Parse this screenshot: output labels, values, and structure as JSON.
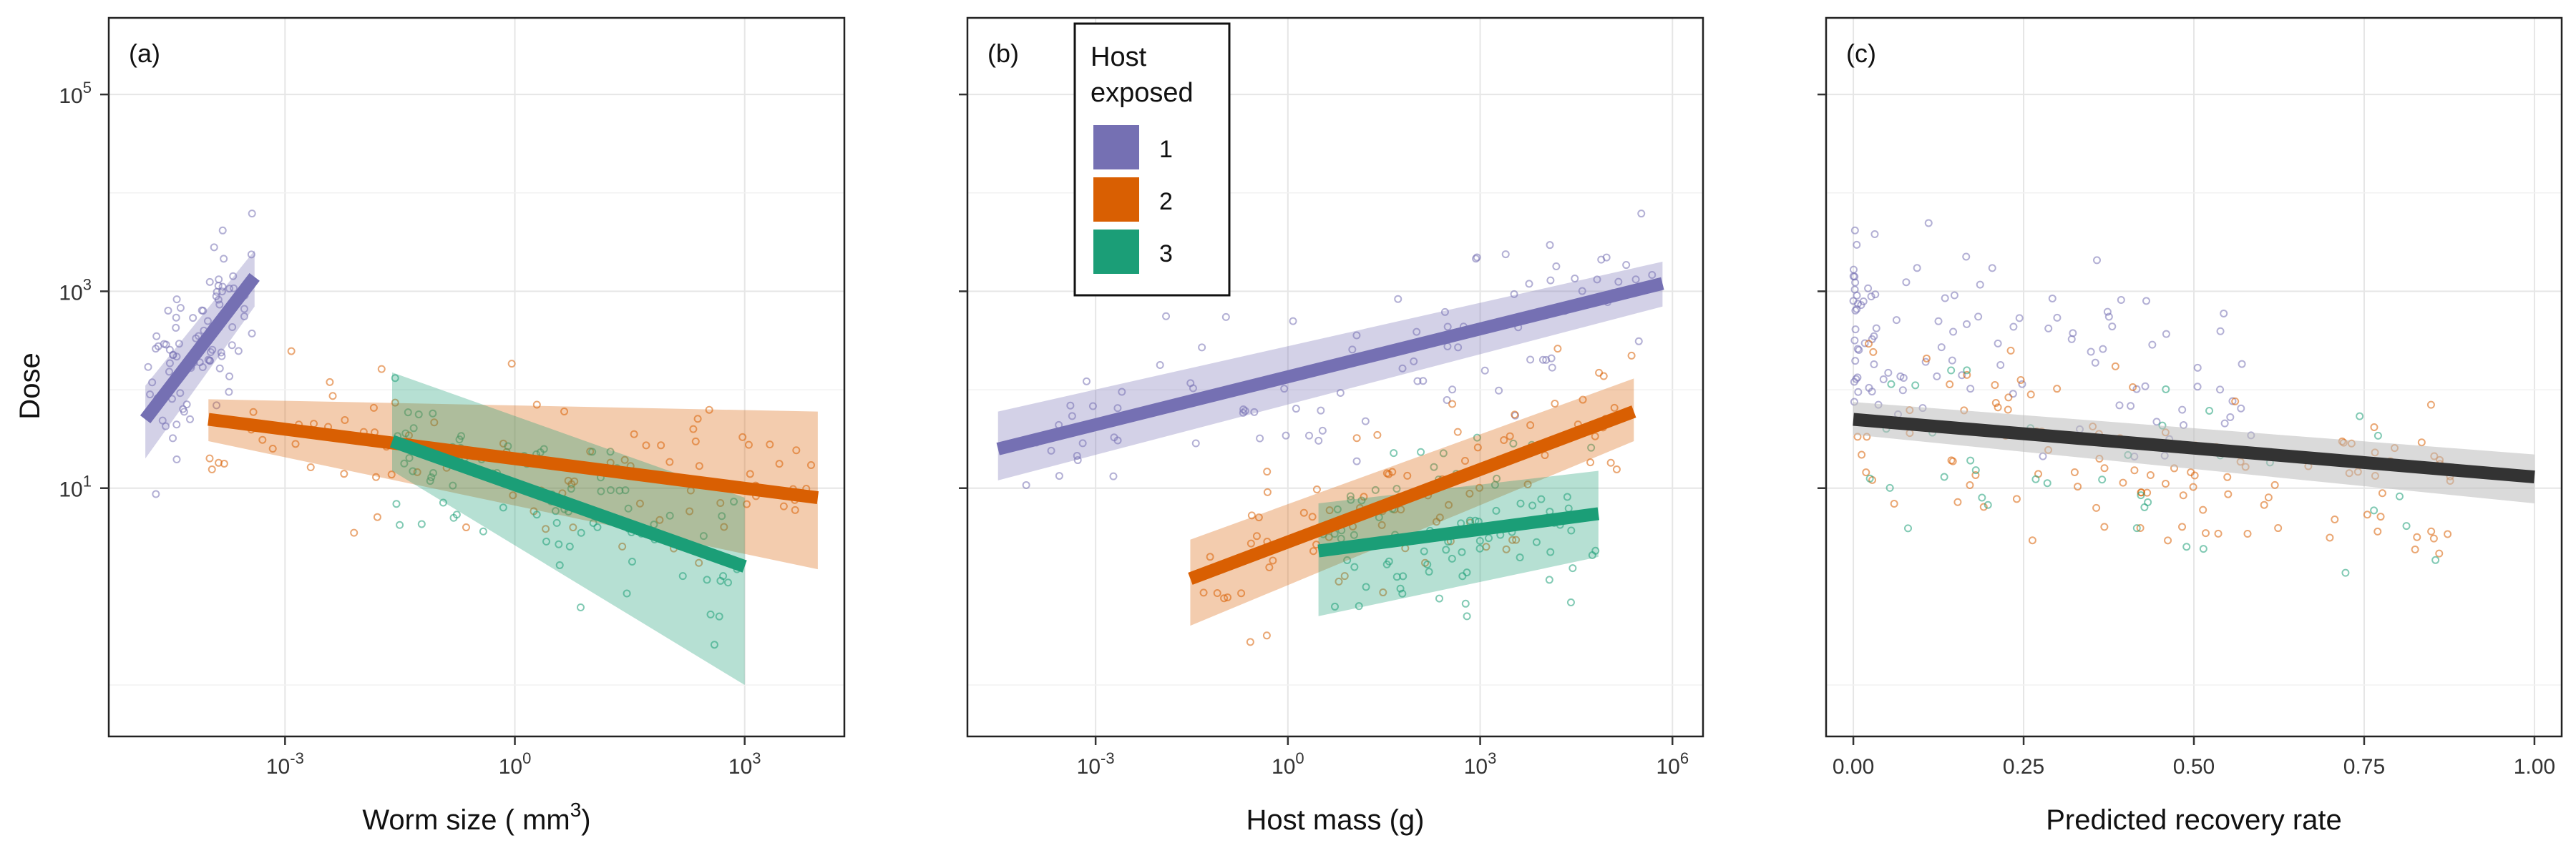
{
  "figure": {
    "shared_ylabel": "Dose",
    "legend": {
      "title_lines": [
        "Host",
        "exposed"
      ],
      "entries": [
        {
          "label": "1",
          "color": "#7570b3"
        },
        {
          "label": "2",
          "color": "#d95f02"
        },
        {
          "label": "3",
          "color": "#1b9e77"
        }
      ]
    }
  },
  "chart_data": [
    {
      "type": "scatter",
      "panel_label": "(a)",
      "xlabel": "Worm size ( mm",
      "xlabel_superscript": "3",
      "xlabel_suffix": ")",
      "ylabel": "Dose",
      "x_scale": "log10",
      "y_scale": "log10",
      "xlim": [
        5e-06,
        20000
      ],
      "ylim": [
        0.03,
        600000
      ],
      "x_ticks": [
        {
          "value": 0.001,
          "label": "10",
          "exp": "-3"
        },
        {
          "value": 1,
          "label": "10",
          "exp": "0"
        },
        {
          "value": 1000,
          "label": "10",
          "exp": "3"
        }
      ],
      "y_ticks": [
        {
          "value": 10,
          "label": "10",
          "exp": "1"
        },
        {
          "value": 1000,
          "label": "10",
          "exp": "3"
        },
        {
          "value": 100000,
          "label": "10",
          "exp": "5"
        }
      ],
      "grid": true,
      "fits": [
        {
          "series": "1",
          "x": [
            1.5e-05,
            0.0004
          ],
          "y": [
            50,
            1400
          ],
          "ci_lower": [
            20,
            700
          ],
          "ci_upper": [
            110,
            2600
          ]
        },
        {
          "series": "2",
          "x": [
            0.0001,
            9000
          ],
          "y": [
            50,
            8
          ],
          "ci_lower": [
            30,
            1.5
          ],
          "ci_upper": [
            80,
            60
          ]
        },
        {
          "series": "3",
          "x": [
            0.025,
            1000
          ],
          "y": [
            30,
            1.6
          ],
          "ci_lower": [
            15,
            0.1
          ],
          "ci_upper": [
            150,
            8
          ]
        }
      ]
    },
    {
      "type": "scatter",
      "panel_label": "(b)",
      "xlabel": "Host mass (g)",
      "ylabel": "",
      "x_scale": "log10",
      "y_scale": "log10",
      "xlim": [
        1e-05,
        3000000
      ],
      "ylim": [
        0.03,
        600000
      ],
      "x_ticks": [
        {
          "value": 0.001,
          "label": "10",
          "exp": "-3"
        },
        {
          "value": 1,
          "label": "10",
          "exp": "0"
        },
        {
          "value": 1000,
          "label": "10",
          "exp": "3"
        },
        {
          "value": 1000000,
          "label": "10",
          "exp": "6"
        }
      ],
      "y_ticks": [
        {
          "value": 10,
          "label": "",
          "exp": ""
        },
        {
          "value": 1000,
          "label": "",
          "exp": ""
        },
        {
          "value": 100000,
          "label": "",
          "exp": ""
        }
      ],
      "grid": true,
      "fits": [
        {
          "series": "1",
          "x": [
            3e-05,
            700000
          ],
          "y": [
            25,
            1200
          ],
          "ci_lower": [
            12,
            700
          ],
          "ci_upper": [
            60,
            2000
          ]
        },
        {
          "series": "2",
          "x": [
            0.03,
            250000
          ],
          "y": [
            1.2,
            60
          ],
          "ci_lower": [
            0.4,
            30
          ],
          "ci_upper": [
            3,
            130
          ]
        },
        {
          "series": "3",
          "x": [
            3,
            70000
          ],
          "y": [
            2.3,
            5.5
          ],
          "ci_lower": [
            0.5,
            2
          ],
          "ci_upper": [
            7,
            15
          ]
        }
      ]
    },
    {
      "type": "scatter",
      "panel_label": "(c)",
      "xlabel": "Predicted recovery rate",
      "ylabel": "",
      "x_scale": "linear",
      "y_scale": "log10",
      "xlim": [
        -0.04,
        1.04
      ],
      "ylim": [
        0.03,
        600000
      ],
      "x_ticks": [
        {
          "value": 0,
          "label": "0.00"
        },
        {
          "value": 0.25,
          "label": "0.25"
        },
        {
          "value": 0.5,
          "label": "0.50"
        },
        {
          "value": 0.75,
          "label": "0.75"
        },
        {
          "value": 1,
          "label": "1.00"
        }
      ],
      "y_ticks": [
        {
          "value": 10,
          "label": "",
          "exp": ""
        },
        {
          "value": 1000,
          "label": "",
          "exp": ""
        },
        {
          "value": 100000,
          "label": "",
          "exp": ""
        }
      ],
      "grid": true,
      "fits": [
        {
          "series": "overall",
          "color": "#333333",
          "ci_color": "#bbbbbb",
          "x": [
            0,
            1
          ],
          "y": [
            50,
            13
          ],
          "ci_lower": [
            35,
            7
          ],
          "ci_upper": [
            75,
            22
          ]
        }
      ]
    }
  ]
}
